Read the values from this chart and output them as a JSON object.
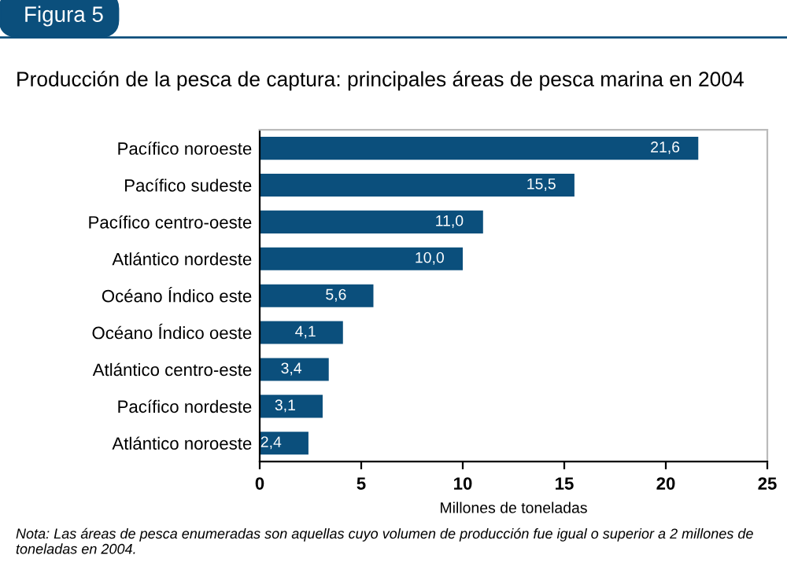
{
  "chart_data": {
    "type": "bar",
    "orientation": "horizontal",
    "title": "Producción de la pesca de captura: principales áreas de pesca marina en 2004",
    "categories": [
      "Pacífico noroeste",
      "Pacífico sudeste",
      "Pacífico centro-oeste",
      "Atlántico nordeste",
      "Océano Índico este",
      "Océano Índico oeste",
      "Atlántico centro-este",
      "Pacífico nordeste",
      "Atlántico noroeste"
    ],
    "values": [
      21.6,
      15.5,
      11.0,
      10.0,
      5.6,
      4.1,
      3.4,
      3.1,
      2.4
    ],
    "value_labels": [
      "21,6",
      "15,5",
      "11,0",
      "10,0",
      "5,6",
      "4,1",
      "3,4",
      "3,1",
      "2,4"
    ],
    "color": "#0b4f7c",
    "xlabel": "Millones de toneladas",
    "xlim": [
      0,
      25
    ],
    "xticks": [
      0,
      5,
      10,
      15,
      20,
      25
    ],
    "grid": false,
    "legend": false,
    "annotations": [
      "Figura 5",
      "Nota: Las áreas de pesca enumeradas son aquellas cuyo volumen de producción fue igual o superior a 2 millones de toneladas en 2004."
    ]
  }
}
